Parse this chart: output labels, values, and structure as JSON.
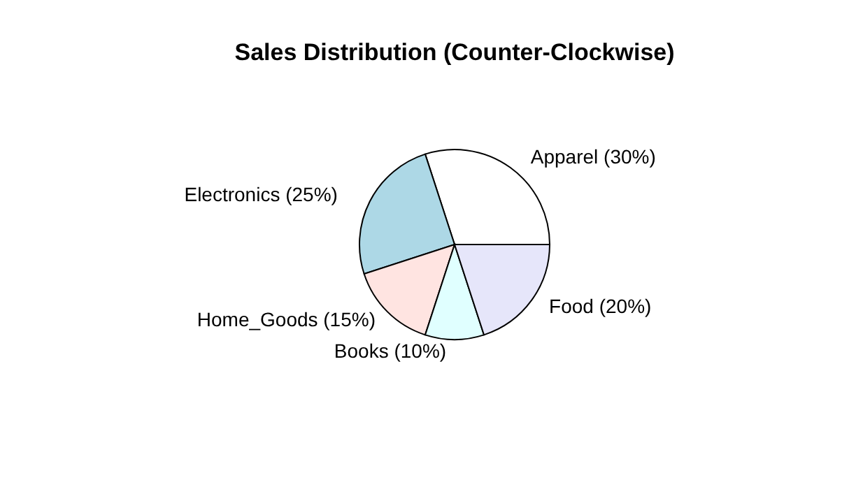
{
  "chart_data": {
    "type": "pie",
    "title": "Sales Distribution (Counter-Clockwise)",
    "categories": [
      "Apparel (30%)",
      "Electronics (25%)",
      "Home_Goods (15%)",
      "Books (10%)",
      "Food (20%)"
    ],
    "values": [
      30,
      25,
      15,
      10,
      20
    ],
    "colors": [
      "#ffffff",
      "#add8e6",
      "#ffe4e1",
      "#e0ffff",
      "#e6e6fa"
    ],
    "legend": false
  }
}
